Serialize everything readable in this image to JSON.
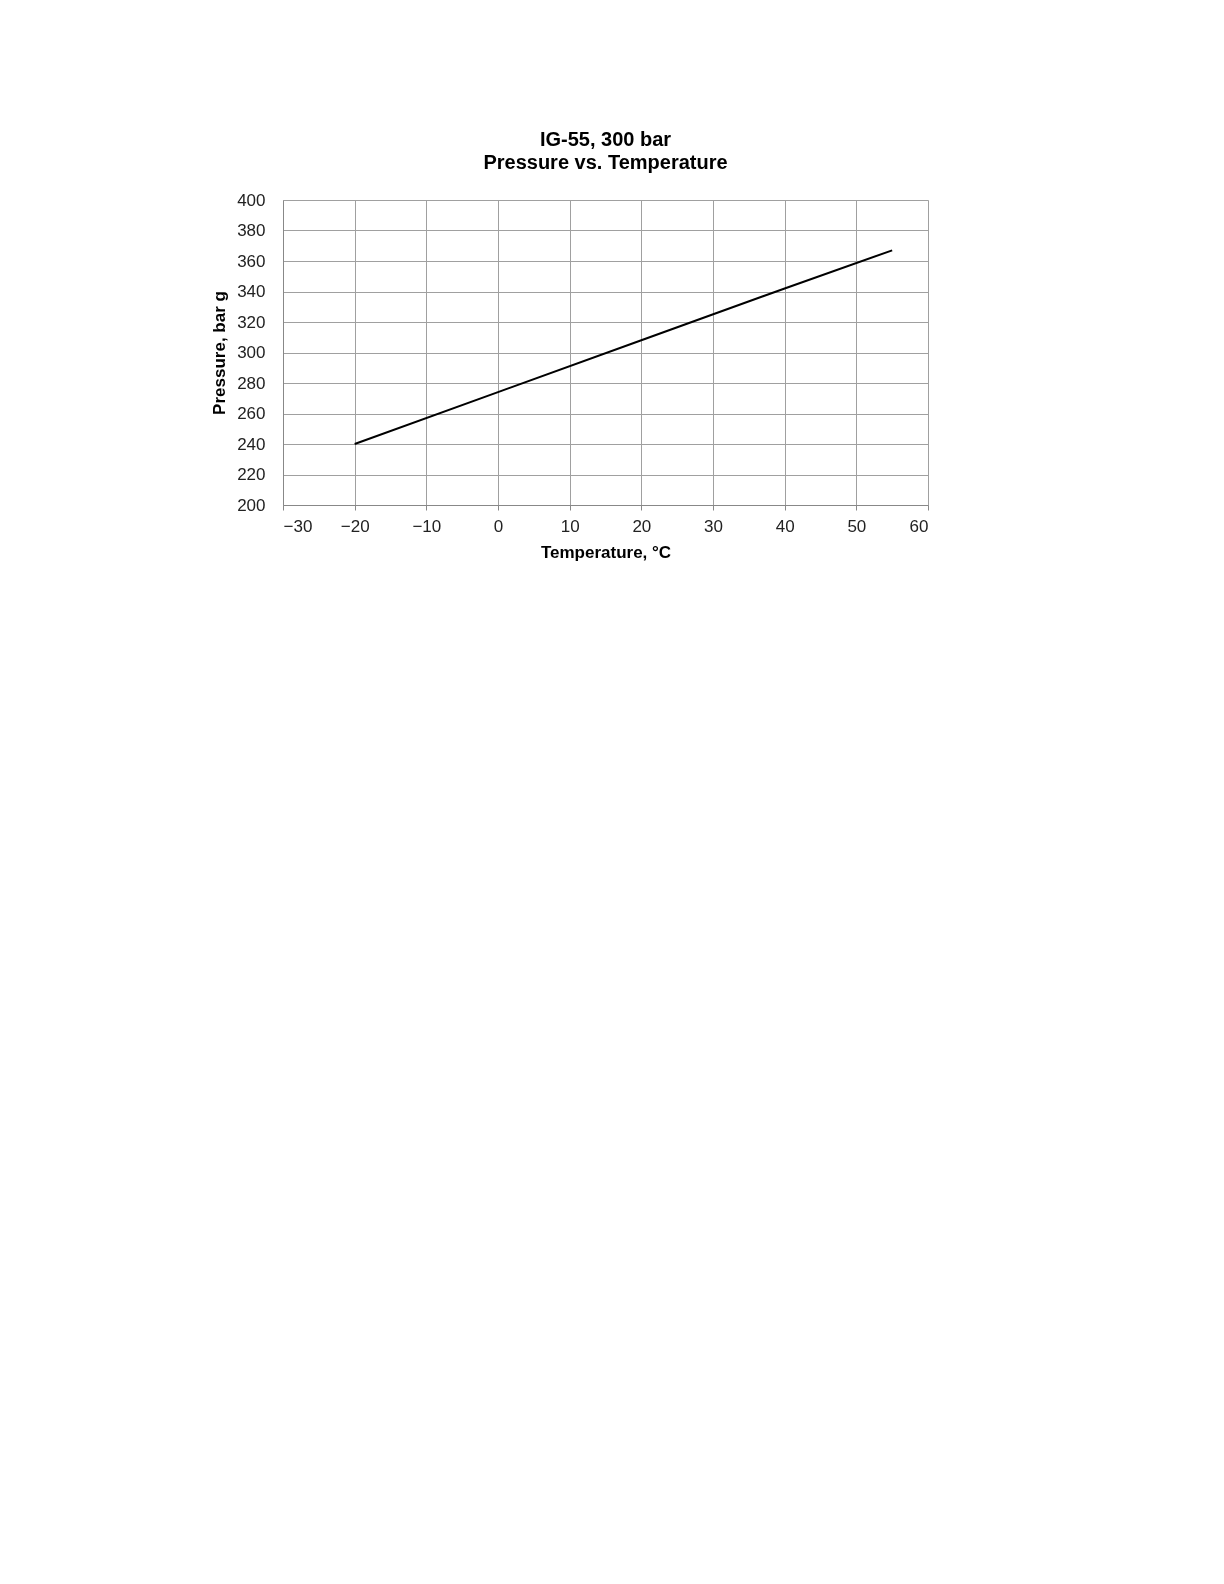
{
  "chart_data": {
    "type": "line",
    "title": "IG-55, 300 bar",
    "subtitle": "Pressure vs. Temperature",
    "xlabel": "Temperature, °C",
    "ylabel": "Pressure, bar g",
    "x": [
      -20,
      0,
      20,
      40,
      55
    ],
    "series": [
      {
        "color": "#000000",
        "values": [
          240,
          274,
          308,
          342,
          367
        ]
      }
    ],
    "xlim": [
      -30,
      60
    ],
    "xticks": [
      -30,
      -20,
      -10,
      0,
      10,
      20,
      30,
      40,
      50,
      60
    ],
    "ylim": [
      200,
      400
    ],
    "yticks": [
      200,
      220,
      240,
      260,
      280,
      300,
      320,
      340,
      360,
      380,
      400
    ],
    "grid": true,
    "marker": "none",
    "line_style": "solid"
  }
}
